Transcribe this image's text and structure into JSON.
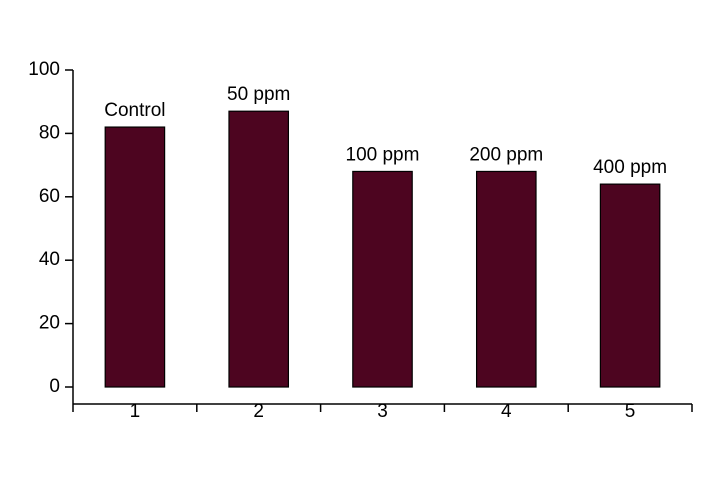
{
  "chart_data": {
    "type": "bar",
    "categories": [
      "1",
      "2",
      "3",
      "4",
      "5"
    ],
    "values": [
      82,
      87,
      68,
      68,
      64
    ],
    "bar_labels": [
      "Control",
      "50 ppm",
      "100 ppm",
      "200 ppm",
      "400 ppm"
    ],
    "color": "#4d0520",
    "ylim": [
      0,
      100
    ],
    "yticks": [
      0,
      20,
      40,
      60,
      80,
      100
    ],
    "grid": false
  }
}
